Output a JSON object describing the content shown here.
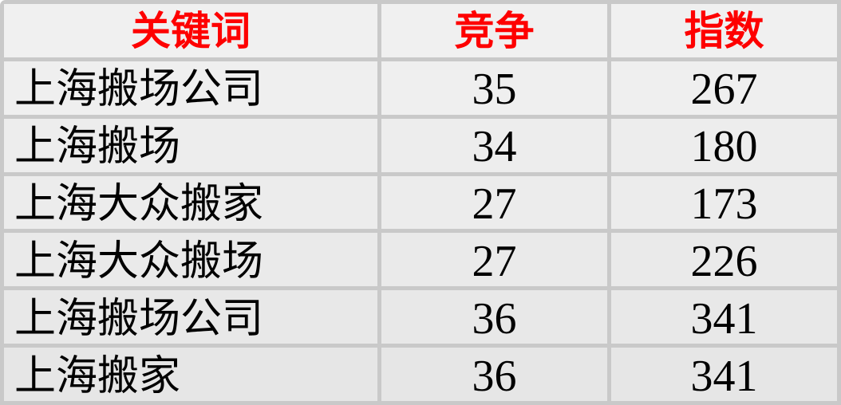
{
  "chart_data": {
    "type": "table",
    "columns": [
      {
        "key": "keyword",
        "label": "关键词"
      },
      {
        "key": "competition",
        "label": "竞争"
      },
      {
        "key": "index",
        "label": "指数"
      }
    ],
    "rows": [
      {
        "keyword": "上海搬场公司",
        "competition": 35,
        "index": 267
      },
      {
        "keyword": "上海搬场",
        "competition": 34,
        "index": 180
      },
      {
        "keyword": "上海大众搬家",
        "competition": 27,
        "index": 173
      },
      {
        "keyword": "上海大众搬场",
        "competition": 27,
        "index": 226
      },
      {
        "keyword": "上海搬场公司",
        "competition": 36,
        "index": 341
      },
      {
        "keyword": "上海搬家",
        "competition": 36,
        "index": 341
      }
    ],
    "layout": {
      "header_text_color": "#fe0000",
      "body_text_color": "#000000",
      "gridline_color": "#c9c9c9",
      "background_top": "#f0f0f0",
      "background_bottom": "#e6e6e6",
      "grid": "on"
    }
  }
}
